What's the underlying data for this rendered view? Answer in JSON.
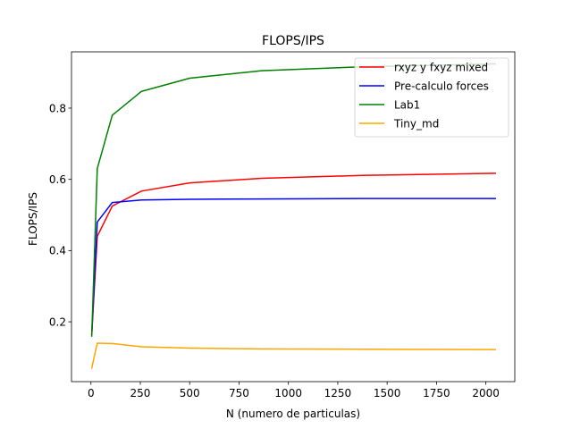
{
  "chart_data": {
    "type": "line",
    "title": "FLOPS/IPS",
    "xlabel": "N (numero de particulas)",
    "ylabel": "FLOPS/IPS",
    "xlim": [
      -98.5,
      2146.5
    ],
    "ylim": [
      0.032,
      0.958
    ],
    "xticks": [
      0,
      250,
      500,
      750,
      1000,
      1250,
      1500,
      1750,
      2000
    ],
    "yticks": [
      0.2,
      0.4,
      0.6,
      0.8
    ],
    "grid": false,
    "legend_position": "top-right",
    "series": [
      {
        "name": "rxyz y fxyz mixed",
        "color": "#ff0000",
        "x": [
          4,
          32,
          108,
          256,
          500,
          864,
          1372,
          2048
        ],
        "y": [
          0.165,
          0.44,
          0.525,
          0.567,
          0.59,
          0.603,
          0.611,
          0.617
        ]
      },
      {
        "name": "Pre-calculo forces",
        "color": "#0000ff",
        "x": [
          4,
          32,
          108,
          256,
          500,
          864,
          1372,
          2048
        ],
        "y": [
          0.165,
          0.48,
          0.535,
          0.542,
          0.544,
          0.545,
          0.546,
          0.546
        ]
      },
      {
        "name": "Lab1",
        "color": "#008000",
        "x": [
          4,
          32,
          108,
          256,
          500,
          864,
          1372,
          2048
        ],
        "y": [
          0.16,
          0.63,
          0.78,
          0.847,
          0.884,
          0.905,
          0.916,
          0.924
        ]
      },
      {
        "name": "Tiny_md",
        "color": "#ffa500",
        "x": [
          4,
          32,
          108,
          256,
          500,
          864,
          1372,
          2048
        ],
        "y": [
          0.07,
          0.14,
          0.139,
          0.13,
          0.126,
          0.124,
          0.123,
          0.122
        ]
      }
    ]
  }
}
